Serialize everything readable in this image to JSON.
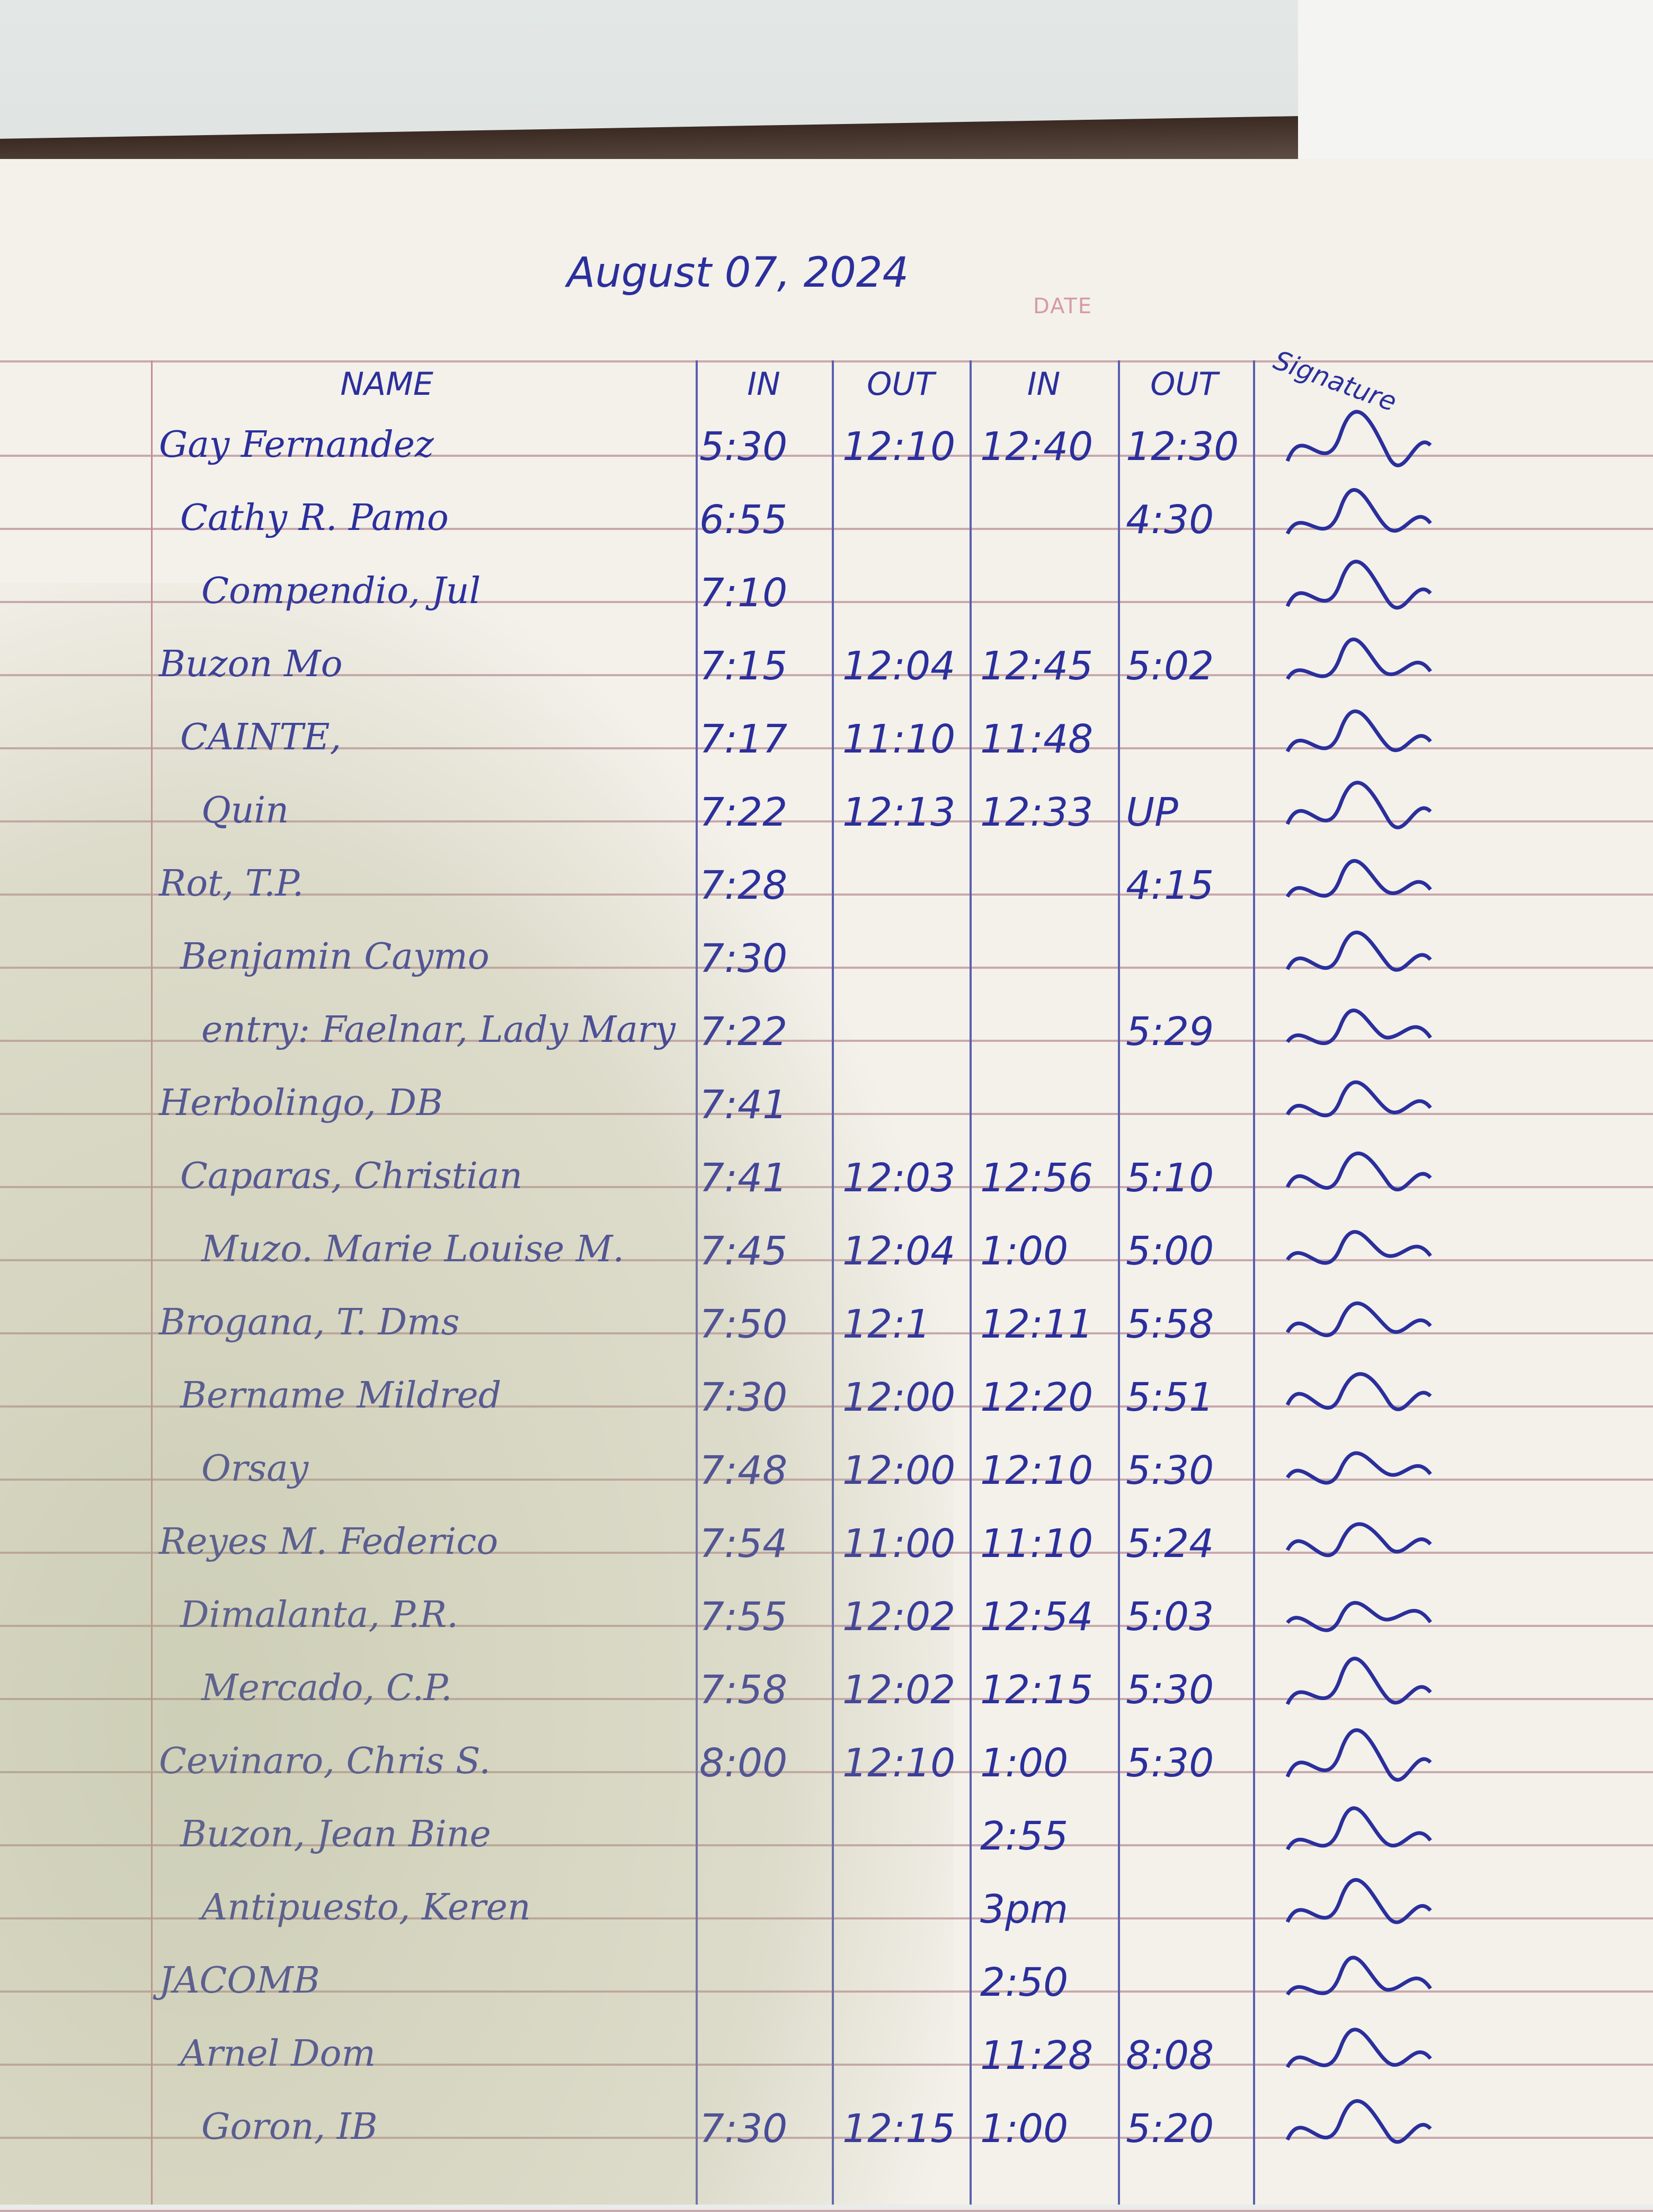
{
  "header": {
    "date_written": "August 07, 2024",
    "date_label": "DATE"
  },
  "columns": [
    "NAME",
    "IN",
    "OUT",
    "IN",
    "OUT",
    "Signature"
  ],
  "rows": [
    {
      "name": "Gay Fernandez",
      "in1": "5:30",
      "out1": "12:10",
      "in2": "12:40",
      "out2": "12:30"
    },
    {
      "name": "Cathy R. Pamo",
      "in1": "6:55",
      "out1": "",
      "in2": "",
      "out2": "4:30"
    },
    {
      "name": "Compendio, Jul",
      "in1": "7:10",
      "out1": "",
      "in2": "",
      "out2": ""
    },
    {
      "name": "Buzon Mo",
      "in1": "7:15",
      "out1": "12:04",
      "in2": "12:45",
      "out2": "5:02"
    },
    {
      "name": "CAINTE,",
      "in1": "7:17",
      "out1": "11:10",
      "in2": "11:48",
      "out2": ""
    },
    {
      "name": "Quin",
      "in1": "7:22",
      "out1": "12:13",
      "in2": "12:33",
      "out2": "UP"
    },
    {
      "name": "Rot, T.P.",
      "in1": "7:28",
      "out1": "",
      "in2": "",
      "out2": "4:15"
    },
    {
      "name": "Benjamin Caymo",
      "in1": "7:30",
      "out1": "",
      "in2": "",
      "out2": ""
    },
    {
      "name": "entry: Faelnar, Lady Mary",
      "in1": "7:22",
      "out1": "",
      "in2": "",
      "out2": "5:29"
    },
    {
      "name": "Herbolingo, DB",
      "in1": "7:41",
      "out1": "",
      "in2": "",
      "out2": ""
    },
    {
      "name": "Caparas, Christian",
      "in1": "7:41",
      "out1": "12:03",
      "in2": "12:56",
      "out2": "5:10"
    },
    {
      "name": "Muzo. Marie Louise M.",
      "in1": "7:45",
      "out1": "12:04",
      "in2": "1:00",
      "out2": "5:00"
    },
    {
      "name": "Brogana, T. Dms",
      "in1": "7:50",
      "out1": "12:1",
      "in2": "12:11",
      "out2": "5:58"
    },
    {
      "name": "Bername Mildred",
      "in1": "7:30",
      "out1": "12:00",
      "in2": "12:20",
      "out2": "5:51"
    },
    {
      "name": "Orsay",
      "in1": "7:48",
      "out1": "12:00",
      "in2": "12:10",
      "out2": "5:30"
    },
    {
      "name": "Reyes M. Federico",
      "in1": "7:54",
      "out1": "11:00",
      "in2": "11:10",
      "out2": "5:24"
    },
    {
      "name": "Dimalanta, P.R.",
      "in1": "7:55",
      "out1": "12:02",
      "in2": "12:54",
      "out2": "5:03"
    },
    {
      "name": "Mercado, C.P.",
      "in1": "7:58",
      "out1": "12:02",
      "in2": "12:15",
      "out2": "5:30"
    },
    {
      "name": "Cevinaro, Chris S.",
      "in1": "8:00",
      "out1": "12:10",
      "in2": "1:00",
      "out2": "5:30"
    },
    {
      "name": "Buzon, Jean Bine",
      "in1": "",
      "out1": "",
      "in2": "2:55",
      "out2": ""
    },
    {
      "name": "Antipuesto, Keren",
      "in1": "",
      "out1": "",
      "in2": "3pm",
      "out2": ""
    },
    {
      "name": "JACOMB",
      "in1": "",
      "out1": "",
      "in2": "2:50",
      "out2": ""
    },
    {
      "name": "Arnel Dom",
      "in1": "",
      "out1": "",
      "in2": "11:28",
      "out2": "8:08"
    },
    {
      "name": "Goron, IB",
      "in1": "7:30",
      "out1": "12:15",
      "in2": "1:00",
      "out2": "5:20"
    }
  ],
  "colors": {
    "ink": "#2b2f9c",
    "rule": "#c9a8ad",
    "paper": "#f3f1ea"
  }
}
